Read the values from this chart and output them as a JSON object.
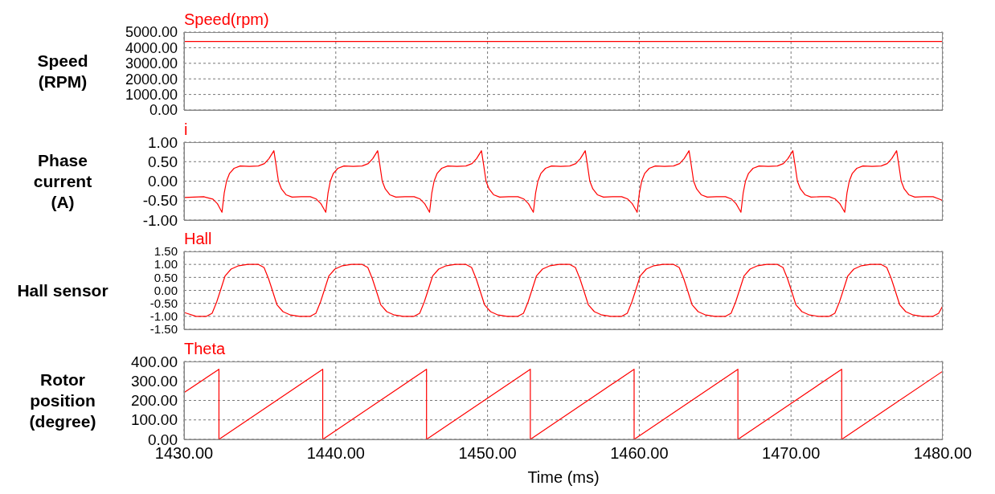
{
  "chart_data": [
    {
      "type": "line",
      "ylabel": "Speed\n(RPM)",
      "tick_labels": "y",
      "grid": true,
      "xlim": [
        1430,
        1480
      ],
      "xticks": [
        {
          "value": 1430,
          "label": null
        },
        {
          "value": 1440,
          "label": null
        },
        {
          "value": 1450,
          "label": null
        },
        {
          "value": 1460,
          "label": null
        },
        {
          "value": 1470,
          "label": null
        },
        {
          "value": 1480,
          "label": null
        }
      ],
      "ylim": [
        0,
        5000
      ],
      "yticks": [
        {
          "value": 0,
          "label": "0.00"
        },
        {
          "value": 1000,
          "label": "1000.00"
        },
        {
          "value": 2000,
          "label": "2000.00"
        },
        {
          "value": 3000,
          "label": "3000.00"
        },
        {
          "value": 4000,
          "label": "4000.00"
        },
        {
          "value": 5000,
          "label": "5000.00"
        }
      ],
      "series": [
        {
          "name": "Speed(rpm)",
          "color": "#ff0000",
          "x": [
            1430,
            1480
          ],
          "values": [
            4400,
            4400
          ]
        }
      ]
    },
    {
      "type": "line",
      "ylabel": "Phase\ncurrent\n(A)",
      "tick_labels": "y",
      "grid": true,
      "xlim": [
        1430,
        1480
      ],
      "xticks": [
        {
          "value": 1430,
          "label": null
        },
        {
          "value": 1440,
          "label": null
        },
        {
          "value": 1450,
          "label": null
        },
        {
          "value": 1460,
          "label": null
        },
        {
          "value": 1470,
          "label": null
        },
        {
          "value": 1480,
          "label": null
        }
      ],
      "ylim": [
        -1,
        1
      ],
      "yticks": [
        {
          "value": -1,
          "label": "-1.00"
        },
        {
          "value": -0.5,
          "label": "-0.50"
        },
        {
          "value": 0,
          "label": "0.00"
        },
        {
          "value": 0.5,
          "label": "0.50"
        },
        {
          "value": 1,
          "label": "1.00"
        }
      ],
      "series": [
        {
          "name": "i",
          "color": "#ff0000",
          "x": [
            1430,
            1431.3,
            1431.9,
            1432.2,
            1432.5,
            1432.65,
            1432.8,
            1433.0,
            1433.3,
            1433.7,
            1434.3,
            1434.9,
            1435.3,
            1435.6,
            1435.92,
            1436.07,
            1436.22,
            1436.42,
            1436.72,
            1437.12,
            1437.72,
            1438.32,
            1438.72,
            1439.02,
            1439.34,
            1439.49,
            1439.64,
            1439.84,
            1440.14,
            1440.54,
            1441.14,
            1441.74,
            1442.14,
            1442.44,
            1442.76,
            1442.91,
            1443.06,
            1443.26,
            1443.56,
            1443.96,
            1444.56,
            1445.16,
            1445.56,
            1445.86,
            1446.18,
            1446.33,
            1446.48,
            1446.68,
            1446.98,
            1447.38,
            1447.98,
            1448.58,
            1448.98,
            1449.28,
            1449.6,
            1449.75,
            1449.9,
            1450.1,
            1450.4,
            1450.8,
            1451.4,
            1452.0,
            1452.4,
            1452.7,
            1453.02,
            1453.17,
            1453.32,
            1453.52,
            1453.82,
            1454.22,
            1454.82,
            1455.42,
            1455.82,
            1456.12,
            1456.44,
            1456.59,
            1456.74,
            1456.94,
            1457.24,
            1457.64,
            1458.24,
            1458.84,
            1459.24,
            1459.54,
            1459.86,
            1460.01,
            1460.16,
            1460.36,
            1460.66,
            1461.06,
            1461.66,
            1462.26,
            1462.66,
            1462.96,
            1463.28,
            1463.43,
            1463.58,
            1463.78,
            1464.08,
            1464.48,
            1465.08,
            1465.68,
            1466.08,
            1466.38,
            1466.7,
            1466.85,
            1467.0,
            1467.2,
            1467.5,
            1467.9,
            1468.5,
            1469.1,
            1469.5,
            1469.8,
            1470.12,
            1470.27,
            1470.42,
            1470.62,
            1470.92,
            1471.32,
            1471.92,
            1472.52,
            1472.92,
            1473.22,
            1473.54,
            1473.69,
            1473.84,
            1474.04,
            1474.34,
            1474.74,
            1475.34,
            1475.94,
            1476.34,
            1476.64,
            1476.96,
            1477.11,
            1477.26,
            1477.46,
            1477.76,
            1478.16,
            1478.76,
            1479.36,
            1479.76,
            1480
          ],
          "values": [
            -0.42,
            -0.4,
            -0.46,
            -0.58,
            -0.8,
            -0.3,
            0,
            0.2,
            0.33,
            0.39,
            0.38,
            0.39,
            0.45,
            0.58,
            0.78,
            0.4,
            0,
            -0.2,
            -0.35,
            -0.41,
            -0.4,
            -0.4,
            -0.46,
            -0.58,
            -0.8,
            -0.3,
            0,
            0.2,
            0.33,
            0.39,
            0.38,
            0.39,
            0.45,
            0.58,
            0.78,
            0.4,
            0,
            -0.2,
            -0.35,
            -0.41,
            -0.4,
            -0.4,
            -0.46,
            -0.58,
            -0.8,
            -0.3,
            0,
            0.2,
            0.33,
            0.39,
            0.38,
            0.39,
            0.45,
            0.58,
            0.78,
            0.4,
            0,
            -0.2,
            -0.35,
            -0.41,
            -0.4,
            -0.4,
            -0.46,
            -0.58,
            -0.8,
            -0.3,
            0,
            0.2,
            0.33,
            0.39,
            0.38,
            0.39,
            0.45,
            0.58,
            0.78,
            0.4,
            0,
            -0.2,
            -0.35,
            -0.41,
            -0.4,
            -0.4,
            -0.46,
            -0.58,
            -0.8,
            -0.3,
            0,
            0.2,
            0.33,
            0.39,
            0.38,
            0.39,
            0.45,
            0.58,
            0.78,
            0.4,
            0,
            -0.2,
            -0.35,
            -0.41,
            -0.4,
            -0.4,
            -0.46,
            -0.58,
            -0.8,
            -0.3,
            0,
            0.2,
            0.33,
            0.39,
            0.38,
            0.39,
            0.45,
            0.58,
            0.78,
            0.4,
            0,
            -0.2,
            -0.35,
            -0.41,
            -0.4,
            -0.4,
            -0.46,
            -0.58,
            -0.8,
            -0.3,
            0,
            0.2,
            0.33,
            0.39,
            0.38,
            0.39,
            0.45,
            0.58,
            0.78,
            0.4,
            0,
            -0.2,
            -0.35,
            -0.41,
            -0.4,
            -0.4,
            -0.46,
            -0.5
          ]
        }
      ]
    },
    {
      "type": "line",
      "ylabel": "Hall sensor",
      "tick_labels": "y",
      "grid": true,
      "xlim": [
        1430,
        1480
      ],
      "xticks": [
        {
          "value": 1430,
          "label": null
        },
        {
          "value": 1440,
          "label": null
        },
        {
          "value": 1450,
          "label": null
        },
        {
          "value": 1460,
          "label": null
        },
        {
          "value": 1470,
          "label": null
        },
        {
          "value": 1480,
          "label": null
        }
      ],
      "ylim": [
        -1.5,
        1.5
      ],
      "yticks": [
        {
          "value": -1.5,
          "label": "-1.50"
        },
        {
          "value": -1,
          "label": "-1.00"
        },
        {
          "value": -0.5,
          "label": "-0.50"
        },
        {
          "value": 0,
          "label": "0.00"
        },
        {
          "value": 0.5,
          "label": "0.50"
        },
        {
          "value": 1,
          "label": "1.00"
        },
        {
          "value": 1.5,
          "label": "1.50"
        }
      ],
      "series": [
        {
          "name": "Hall",
          "color": "#ff0000",
          "x": [
            1430,
            1430.8,
            1431.48,
            1431.85,
            1432.15,
            1432.4,
            1432.7,
            1433.1,
            1433.6,
            1434.2,
            1434.9,
            1435.27,
            1435.57,
            1435.82,
            1436.12,
            1436.52,
            1437.02,
            1437.62,
            1438.32,
            1438.69,
            1438.99,
            1439.24,
            1439.54,
            1439.94,
            1440.44,
            1441.04,
            1441.74,
            1442.11,
            1442.41,
            1442.66,
            1442.96,
            1443.36,
            1443.86,
            1444.46,
            1445.16,
            1445.53,
            1445.83,
            1446.08,
            1446.38,
            1446.78,
            1447.28,
            1447.88,
            1448.58,
            1448.95,
            1449.25,
            1449.5,
            1449.8,
            1450.2,
            1450.7,
            1451.3,
            1452.0,
            1452.37,
            1452.67,
            1452.92,
            1453.22,
            1453.62,
            1454.12,
            1454.72,
            1455.42,
            1455.79,
            1456.09,
            1456.34,
            1456.64,
            1457.04,
            1457.54,
            1458.14,
            1458.84,
            1459.21,
            1459.51,
            1459.76,
            1460.06,
            1460.46,
            1460.96,
            1461.56,
            1462.26,
            1462.63,
            1462.93,
            1463.18,
            1463.48,
            1463.88,
            1464.38,
            1464.98,
            1465.68,
            1466.05,
            1466.35,
            1466.6,
            1466.9,
            1467.3,
            1467.8,
            1468.4,
            1469.1,
            1469.47,
            1469.77,
            1470.02,
            1470.32,
            1470.72,
            1471.22,
            1471.82,
            1472.52,
            1472.89,
            1473.19,
            1473.44,
            1473.74,
            1474.14,
            1474.64,
            1475.24,
            1475.94,
            1476.31,
            1476.61,
            1476.86,
            1477.16,
            1477.56,
            1478.06,
            1478.66,
            1479.36,
            1479.73,
            1480
          ],
          "values": [
            -0.85,
            -1,
            -1,
            -0.88,
            -0.45,
            0,
            0.55,
            0.82,
            0.95,
            1,
            1,
            0.88,
            0.45,
            0,
            -0.55,
            -0.82,
            -0.95,
            -1,
            -1,
            -0.88,
            -0.45,
            0,
            0.55,
            0.82,
            0.95,
            1,
            1,
            0.88,
            0.45,
            0,
            -0.55,
            -0.82,
            -0.95,
            -1,
            -1,
            -0.88,
            -0.45,
            0,
            0.55,
            0.82,
            0.95,
            1,
            1,
            0.88,
            0.45,
            0,
            -0.55,
            -0.82,
            -0.95,
            -1,
            -1,
            -0.88,
            -0.45,
            0,
            0.55,
            0.82,
            0.95,
            1,
            1,
            0.88,
            0.45,
            0,
            -0.55,
            -0.82,
            -0.95,
            -1,
            -1,
            -0.88,
            -0.45,
            0,
            0.55,
            0.82,
            0.95,
            1,
            1,
            0.88,
            0.45,
            0,
            -0.55,
            -0.82,
            -0.95,
            -1,
            -1,
            -0.88,
            -0.45,
            0,
            0.55,
            0.82,
            0.95,
            1,
            1,
            0.88,
            0.45,
            0,
            -0.55,
            -0.82,
            -0.95,
            -1,
            -1,
            -0.88,
            -0.45,
            0,
            0.55,
            0.82,
            0.95,
            1,
            1,
            0.88,
            0.45,
            0,
            -0.55,
            -0.82,
            -0.95,
            -1,
            -1,
            -0.88,
            -0.6
          ]
        }
      ]
    },
    {
      "type": "line",
      "ylabel": "Rotor\nposition\n(degree)",
      "xlabel": "Time (ms)",
      "grid": true,
      "xlim": [
        1430,
        1480
      ],
      "xticks": [
        {
          "value": 1430,
          "label": "1430.00"
        },
        {
          "value": 1440,
          "label": "1440.00"
        },
        {
          "value": 1450,
          "label": "1450.00"
        },
        {
          "value": 1460,
          "label": "1460.00"
        },
        {
          "value": 1470,
          "label": "1470.00"
        },
        {
          "value": 1480,
          "label": "1480.00"
        }
      ],
      "ylim": [
        0,
        400
      ],
      "yticks": [
        {
          "value": 0,
          "label": "0.00"
        },
        {
          "value": 100,
          "label": "100.00"
        },
        {
          "value": 200,
          "label": "200.00"
        },
        {
          "value": 300,
          "label": "300.00"
        },
        {
          "value": 400,
          "label": "400.00"
        }
      ],
      "series": [
        {
          "name": "Theta",
          "color": "#ff0000",
          "x": [
            1430,
            1432.3,
            1432.3,
            1439.14,
            1439.14,
            1445.98,
            1445.98,
            1452.82,
            1452.82,
            1459.66,
            1459.66,
            1466.5,
            1466.5,
            1473.34,
            1473.34,
            1480
          ],
          "values": [
            240,
            360,
            0,
            360,
            0,
            360,
            0,
            360,
            0,
            360,
            0,
            360,
            0,
            360,
            0,
            350
          ]
        }
      ]
    }
  ]
}
